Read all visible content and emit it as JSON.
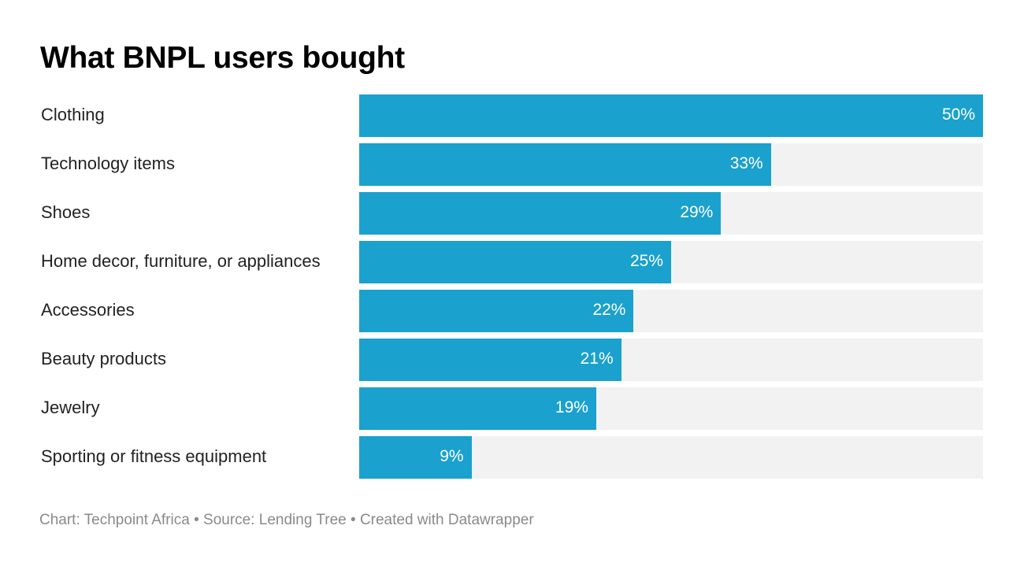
{
  "chart_data": {
    "type": "bar",
    "orientation": "horizontal",
    "title": "What BNPL users bought",
    "categories": [
      "Clothing",
      "Technology items",
      "Shoes",
      "Home decor, furniture, or appliances",
      "Accessories",
      "Beauty products",
      "Jewelry",
      "Sporting or fitness equipment"
    ],
    "values": [
      50,
      33,
      29,
      25,
      22,
      21,
      19,
      9
    ],
    "value_labels": [
      "50%",
      "33%",
      "29%",
      "25%",
      "22%",
      "21%",
      "19%",
      "9%"
    ],
    "xlim": [
      0,
      50
    ],
    "unit": "%",
    "grid": false,
    "colors": {
      "bar": "#1aa1cd",
      "track": "#f2f2f2"
    }
  },
  "footer": {
    "chart_credit": "Chart: Techpoint Africa",
    "source": "Source: Lending Tree",
    "created_with": "Created with Datawrapper",
    "separator": " • "
  }
}
